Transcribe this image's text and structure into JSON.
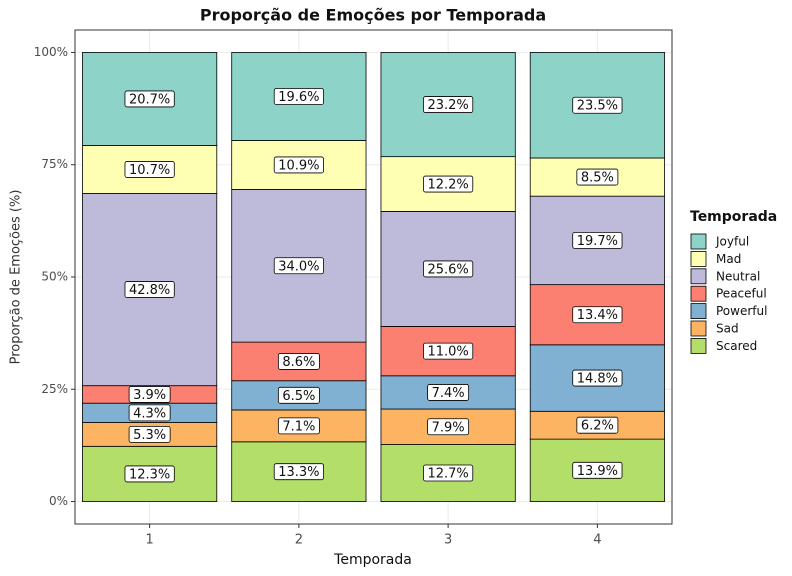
{
  "chart_data": {
    "type": "stacked_bar",
    "title": "Proporção de Emoções por Temporada",
    "x_label": "Temporada",
    "y_label": "Proporção de Emoções (%)",
    "legend_title": "Temporada",
    "legend_position": "right",
    "grid": true,
    "categories": [
      "1",
      "2",
      "3",
      "4"
    ],
    "ylim": [
      -5,
      105
    ],
    "yticks": [
      {
        "value": 0,
        "label": "0%"
      },
      {
        "value": 25,
        "label": "25%"
      },
      {
        "value": 50,
        "label": "50%"
      },
      {
        "value": 75,
        "label": "75%"
      },
      {
        "value": 100,
        "label": "100%"
      }
    ],
    "series": [
      {
        "name": "Joyful",
        "color": "#8dd3c7",
        "values": [
          20.7,
          19.6,
          23.2,
          23.5
        ],
        "value_labels": [
          "20.7%",
          "19.6%",
          "23.2%",
          "23.5%"
        ]
      },
      {
        "name": "Mad",
        "color": "#ffffb3",
        "values": [
          10.7,
          10.9,
          12.2,
          8.5
        ],
        "value_labels": [
          "10.7%",
          "10.9%",
          "12.2%",
          "8.5%"
        ]
      },
      {
        "name": "Neutral",
        "color": "#bebada",
        "values": [
          42.8,
          34.0,
          25.6,
          19.7
        ],
        "value_labels": [
          "42.8%",
          "34.0%",
          "25.6%",
          "19.7%"
        ]
      },
      {
        "name": "Peaceful",
        "color": "#fb8072",
        "values": [
          3.9,
          8.6,
          11.0,
          13.4
        ],
        "value_labels": [
          "3.9%",
          "8.6%",
          "11.0%",
          "13.4%"
        ]
      },
      {
        "name": "Powerful",
        "color": "#80b1d3",
        "values": [
          4.3,
          6.5,
          7.4,
          14.8
        ],
        "value_labels": [
          "4.3%",
          "6.5%",
          "7.4%",
          "14.8%"
        ]
      },
      {
        "name": "Sad",
        "color": "#fdb462",
        "values": [
          5.3,
          7.1,
          7.9,
          6.2
        ],
        "value_labels": [
          "5.3%",
          "7.1%",
          "7.9%",
          "6.2%"
        ]
      },
      {
        "name": "Scared",
        "color": "#b3de69",
        "values": [
          12.3,
          13.3,
          12.7,
          13.9
        ],
        "value_labels": [
          "12.3%",
          "13.3%",
          "12.7%",
          "13.9%"
        ]
      }
    ]
  }
}
